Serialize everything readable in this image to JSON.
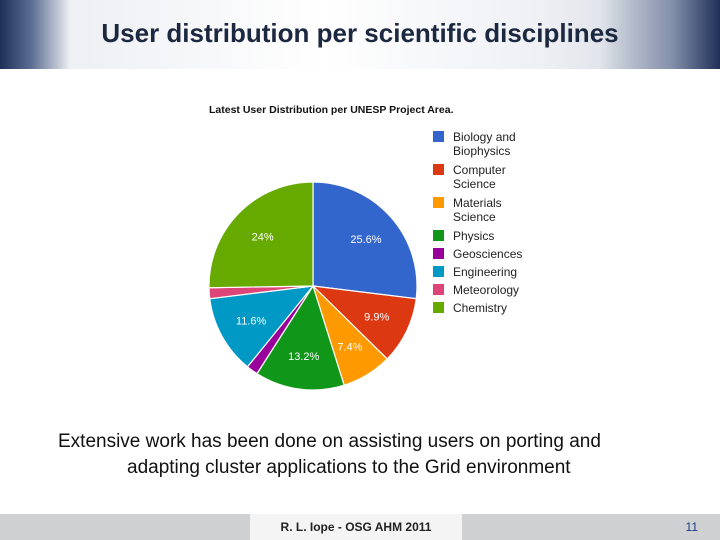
{
  "slide": {
    "title": "User distribution per scientific disciplines",
    "caption_line1": "Extensive work has been done on assisting users on porting and",
    "caption_line2": "adapting cluster applications to the Grid environment",
    "footer": "R. L. Iope - OSG AHM 2011",
    "page_number": "11"
  },
  "chart_data": {
    "type": "pie",
    "title": "Latest User Distribution per UNESP Project Area.",
    "legend_position": "right",
    "slices": [
      {
        "legend_lines": [
          "Biology and",
          "Biophysics"
        ],
        "value": 25.6,
        "label": "25.6%",
        "color": "#3366cc"
      },
      {
        "legend_lines": [
          "Computer",
          "Science"
        ],
        "value": 9.9,
        "label": "9.9%",
        "color": "#dc3912"
      },
      {
        "legend_lines": [
          "Materials",
          "Science"
        ],
        "value": 7.4,
        "label": "7.4%",
        "color": "#ff9900"
      },
      {
        "legend_lines": [
          "Physics"
        ],
        "value": 13.2,
        "label": "13.2%",
        "color": "#109618"
      },
      {
        "legend_lines": [
          "Geosciences"
        ],
        "value": 1.7,
        "label": "",
        "color": "#990099"
      },
      {
        "legend_lines": [
          "Engineering"
        ],
        "value": 11.6,
        "label": "11.6%",
        "color": "#0099c6"
      },
      {
        "legend_lines": [
          "Meteorology"
        ],
        "value": 1.6,
        "label": "",
        "color": "#dd4477"
      },
      {
        "legend_lines": [
          "Chemistry"
        ],
        "value": 24.0,
        "label": "24%",
        "color": "#66aa00"
      }
    ]
  }
}
